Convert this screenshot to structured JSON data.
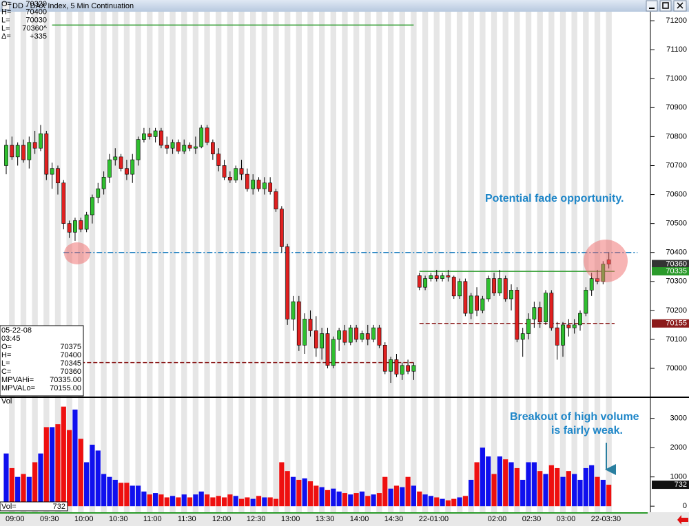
{
  "window_title": "DD - DAX Index, 5 Min Continuation",
  "info_top": [
    {
      "label": "O=",
      "value": 70320
    },
    {
      "label": "H=",
      "value": 70400
    },
    {
      "label": "L=",
      "value": 70030
    },
    {
      "label": "L=",
      "value": "70360^"
    },
    {
      "label": "Δ=",
      "value": "+335"
    }
  ],
  "info_bottom": {
    "date": "05-22-08",
    "time": "03:45",
    "labels": [
      "O=",
      "H=",
      "L=",
      "C="
    ]
  },
  "chart_data": {
    "type": "candlestick",
    "ylim": [
      69905,
      71224
    ],
    "yticks": [
      70000,
      70100,
      70200,
      70300,
      70400,
      70500,
      70600,
      70700,
      70800,
      70900,
      71000,
      71100,
      71200
    ],
    "xticks": [
      {
        "value": 0,
        "label": "09:00"
      },
      {
        "value": 6,
        "label": "09:30"
      },
      {
        "value": 12,
        "label": "10:00"
      },
      {
        "value": 18,
        "label": "10:30"
      },
      {
        "value": 24,
        "label": "11:00"
      },
      {
        "value": 30,
        "label": "11:30"
      },
      {
        "value": 36,
        "label": "12:00"
      },
      {
        "value": 42,
        "label": "12:30"
      },
      {
        "value": 48,
        "label": "13:00"
      },
      {
        "value": 54,
        "label": "13:30"
      },
      {
        "value": 60,
        "label": "14:00"
      },
      {
        "value": 66,
        "label": "14:30"
      },
      {
        "value": 72,
        "label": "22-01:00"
      },
      {
        "value": 84,
        "label": "02:00"
      },
      {
        "value": 90,
        "label": "02:30"
      },
      {
        "value": 96,
        "label": "03:00"
      },
      {
        "value": 102,
        "label": "22-03:30"
      }
    ],
    "up_color": "#2fbf2f",
    "down_color": "#e02020",
    "open": [
      70700,
      70770,
      70730,
      70770,
      70720,
      70780,
      70760,
      70810,
      70670,
      70690,
      70640,
      70500,
      70470,
      70510,
      70480,
      70530,
      70590,
      70620,
      70660,
      70720,
      70730,
      70690,
      70670,
      70720,
      70790,
      70810,
      70800,
      70820,
      70770,
      70760,
      70780,
      70750,
      70770,
      70760,
      70765,
      70830,
      70780,
      70740,
      70700,
      70660,
      70650,
      70690,
      70670,
      70620,
      70650,
      70620,
      70640,
      70610,
      70550,
      70420,
      70170,
      70230,
      70080,
      70170,
      70130,
      70070,
      70120,
      70010,
      70100,
      70130,
      70090,
      70140,
      70100,
      70120,
      70100,
      70140,
      70080,
      69990,
      70030,
      69980,
      70010,
      69990,
      70320,
      70280,
      70310,
      70320,
      70310,
      70320,
      70315,
      70250,
      70300,
      70190,
      70250,
      70200,
      70240,
      70310,
      70260,
      70310,
      70240,
      70270,
      70100,
      70120,
      70170,
      70210,
      70160,
      70260,
      70140,
      70080,
      70150,
      70140,
      70150,
      70190,
      70270,
      70310,
      70300,
      70375
    ],
    "high": [
      70790,
      70800,
      70780,
      70790,
      70800,
      70820,
      70840,
      70820,
      70710,
      70700,
      70650,
      70510,
      70520,
      70520,
      70540,
      70600,
      70640,
      70680,
      70740,
      70760,
      70740,
      70720,
      70740,
      70800,
      70830,
      70830,
      70830,
      70830,
      70800,
      70790,
      70790,
      70790,
      70780,
      70800,
      70840,
      70840,
      70790,
      70760,
      70720,
      70680,
      70700,
      70720,
      70690,
      70670,
      70660,
      70660,
      70660,
      70620,
      70560,
      70430,
      70250,
      70250,
      70190,
      70200,
      70180,
      70140,
      70140,
      70110,
      70140,
      70150,
      70150,
      70150,
      70130,
      70150,
      70150,
      70150,
      70090,
      70040,
      70050,
      70020,
      70030,
      70020,
      70330,
      70320,
      70330,
      70340,
      70330,
      70340,
      70320,
      70310,
      70310,
      70260,
      70280,
      70250,
      70320,
      70330,
      70340,
      70320,
      70290,
      70280,
      70140,
      70190,
      70230,
      70230,
      70270,
      70270,
      70160,
      70160,
      70170,
      70170,
      70200,
      70280,
      70330,
      70340,
      70370,
      70400
    ],
    "low": [
      70670,
      70720,
      70700,
      70710,
      70690,
      70740,
      70750,
      70650,
      70620,
      70600,
      70480,
      70450,
      70440,
      70470,
      70470,
      70500,
      70570,
      70600,
      70640,
      70700,
      70680,
      70650,
      70640,
      70700,
      70780,
      70790,
      70780,
      70760,
      70740,
      70740,
      70740,
      70740,
      70750,
      70740,
      70760,
      70770,
      70720,
      70680,
      70650,
      70640,
      70640,
      70650,
      70610,
      70600,
      70610,
      70600,
      70600,
      70540,
      70400,
      70150,
      70130,
      70060,
      70050,
      70110,
      70040,
      70030,
      70000,
      70000,
      70060,
      70080,
      70080,
      70090,
      70090,
      70080,
      70090,
      70070,
      69980,
      69950,
      69970,
      69960,
      69980,
      69960,
      70270,
      70270,
      70300,
      70300,
      70300,
      70300,
      70240,
      70240,
      70180,
      70170,
      70180,
      70190,
      70230,
      70250,
      70250,
      70230,
      70200,
      70090,
      70040,
      70100,
      70140,
      70140,
      70150,
      70130,
      70030,
      70040,
      70110,
      70120,
      70130,
      70180,
      70250,
      70290,
      70290,
      70345
    ],
    "close": [
      70770,
      70730,
      70770,
      70720,
      70780,
      70760,
      70810,
      70670,
      70690,
      70640,
      70500,
      70470,
      70510,
      70480,
      70530,
      70590,
      70620,
      70660,
      70720,
      70730,
      70690,
      70670,
      70720,
      70790,
      70810,
      70800,
      70820,
      70770,
      70760,
      70780,
      70750,
      70770,
      70760,
      70765,
      70830,
      70780,
      70740,
      70700,
      70660,
      70650,
      70690,
      70670,
      70620,
      70650,
      70620,
      70640,
      70610,
      70550,
      70420,
      70170,
      70230,
      70080,
      70170,
      70130,
      70070,
      70120,
      70010,
      70100,
      70130,
      70090,
      70140,
      70100,
      70120,
      70100,
      70140,
      70080,
      69990,
      70030,
      69980,
      70010,
      69990,
      70010,
      70280,
      70310,
      70320,
      70310,
      70320,
      70315,
      70250,
      70300,
      70190,
      70250,
      70200,
      70240,
      70310,
      70260,
      70310,
      70240,
      70270,
      70100,
      70120,
      70170,
      70210,
      70160,
      70260,
      70140,
      70080,
      70150,
      70140,
      70150,
      70190,
      70270,
      70310,
      70300,
      70360,
      70360
    ],
    "reference_lines": [
      {
        "value": 71185,
        "x_range": [
          8,
          71
        ],
        "color": "#2a9a2a",
        "style": "solid"
      },
      {
        "value": 70400,
        "x_range": [
          10,
          110
        ],
        "color": "#1e7fc0",
        "style": "dashdot"
      },
      {
        "value": 70020,
        "x_range": [
          13,
          71
        ],
        "color": "#8b1a1a",
        "style": "dashed"
      }
    ],
    "value_area": [
      {
        "name": "MPVAHi=",
        "value": 70335,
        "label": "70335.00",
        "x_range": [
          72,
          106
        ],
        "color": "#2a9a2a",
        "style": "solid"
      },
      {
        "name": "MPVALo=",
        "value": 70155,
        "label": "70155.00",
        "x_range": [
          72,
          106
        ],
        "color": "#8b1a1a",
        "style": "dashed"
      }
    ],
    "volume": {
      "name": "Vol",
      "readout_label": "Vol=",
      "up_color": "#1010ee",
      "down_color": "#ee1010",
      "ylim": [
        -160,
        3650
      ],
      "yticks": [
        0,
        1000,
        2000,
        3000
      ],
      "values": [
        1800,
        1300,
        1000,
        1100,
        1000,
        1500,
        1800,
        2700,
        2700,
        2800,
        3400,
        2600,
        3300,
        2300,
        1500,
        2100,
        1900,
        1100,
        1000,
        900,
        800,
        800,
        700,
        700,
        500,
        400,
        450,
        400,
        300,
        350,
        300,
        400,
        300,
        400,
        500,
        400,
        300,
        350,
        300,
        400,
        350,
        250,
        300,
        250,
        350,
        300,
        300,
        250,
        1500,
        1200,
        1000,
        900,
        950,
        850,
        700,
        650,
        550,
        600,
        500,
        450,
        400,
        450,
        500,
        350,
        400,
        450,
        1000,
        600,
        700,
        650,
        1000,
        700,
        500,
        400,
        350,
        300,
        250,
        200,
        250,
        300,
        350,
        900,
        1500,
        2000,
        1700,
        1100,
        1700,
        1600,
        1500,
        1300,
        900,
        1500,
        1500,
        1200,
        1100,
        1400,
        1300,
        1000,
        1200,
        1100,
        900,
        1300,
        1400,
        1000,
        900,
        732
      ]
    },
    "annotations": [
      "Potential fade opportunity.",
      "Breakout of high volume",
      "is fairly weak."
    ]
  }
}
